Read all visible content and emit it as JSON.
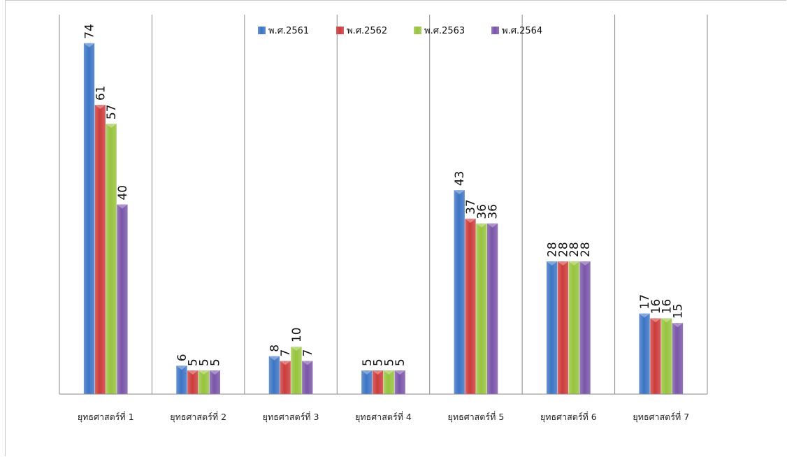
{
  "chart_data": {
    "type": "bar",
    "categories": [
      "ยุทธศาสตร์ที่ 1",
      "ยุทธศาสตร์ที่ 2",
      "ยุทธศาสตร์ที่ 3",
      "ยุทธศาสตร์ที่ 4",
      "ยุทธศาสตร์ที่ 5",
      "ยุทธศาสตร์ที่ 6",
      "ยุทธศาสตร์ที่ 7"
    ],
    "series": [
      {
        "name": "พ.ศ.2561",
        "color": "#3c74c4",
        "values": [
          74,
          6,
          8,
          5,
          43,
          28,
          17
        ]
      },
      {
        "name": "พ.ศ.2562",
        "color": "#cc3b3b",
        "values": [
          61,
          5,
          7,
          5,
          37,
          28,
          16
        ]
      },
      {
        "name": "พ.ศ.2563",
        "color": "#97c33d",
        "values": [
          57,
          5,
          10,
          5,
          36,
          28,
          16
        ]
      },
      {
        "name": "พ.ศ.2564",
        "color": "#7a55a8",
        "values": [
          40,
          5,
          7,
          5,
          36,
          28,
          15
        ]
      }
    ],
    "title": "",
    "xlabel": "",
    "ylabel": "",
    "ylim": [
      0,
      80
    ],
    "grid": "vertical category separators",
    "legend_position": "top"
  }
}
